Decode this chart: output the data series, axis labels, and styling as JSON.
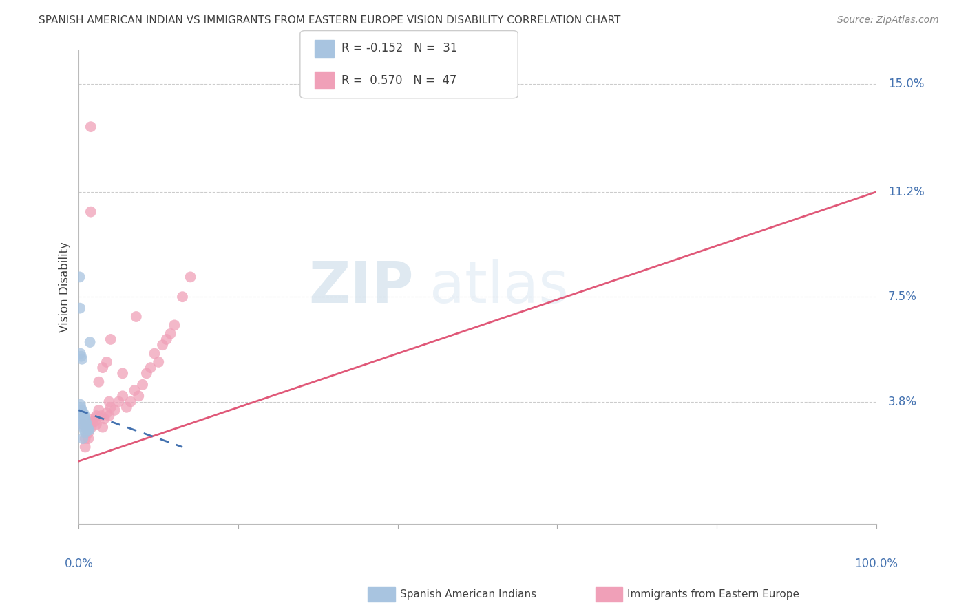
{
  "title": "SPANISH AMERICAN INDIAN VS IMMIGRANTS FROM EASTERN EUROPE VISION DISABILITY CORRELATION CHART",
  "source": "Source: ZipAtlas.com",
  "ylabel": "Vision Disability",
  "ytick_labels": [
    "15.0%",
    "11.2%",
    "7.5%",
    "3.8%"
  ],
  "ytick_values": [
    15.0,
    11.2,
    7.5,
    3.8
  ],
  "xmin": 0.0,
  "xmax": 100.0,
  "ymin": -0.5,
  "ymax": 16.2,
  "legend1_r": "-0.152",
  "legend1_n": "31",
  "legend2_r": "0.570",
  "legend2_n": "47",
  "blue_color": "#a8c4e0",
  "pink_color": "#f0a0b8",
  "blue_line_color": "#4472b0",
  "pink_line_color": "#e05878",
  "title_color": "#404040",
  "source_color": "#888888",
  "axis_label_color": "#4472b0",
  "grid_color": "#cccccc",
  "blue_scatter_x": [
    0.1,
    0.15,
    0.2,
    0.25,
    0.3,
    0.3,
    0.35,
    0.4,
    0.4,
    0.45,
    0.5,
    0.5,
    0.55,
    0.6,
    0.65,
    0.7,
    0.75,
    0.8,
    0.9,
    1.0,
    1.1,
    1.2,
    1.3,
    1.4,
    0.2,
    0.3,
    0.4,
    0.5,
    0.6,
    0.7,
    0.8
  ],
  "blue_scatter_y": [
    8.2,
    7.1,
    3.7,
    3.6,
    3.4,
    3.3,
    3.2,
    3.5,
    3.4,
    3.3,
    3.2,
    3.1,
    3.0,
    3.4,
    3.3,
    3.2,
    3.3,
    3.2,
    3.1,
    3.0,
    2.9,
    2.8,
    2.8,
    5.9,
    5.5,
    5.4,
    5.3,
    2.5,
    2.9,
    2.8,
    2.7
  ],
  "pink_scatter_x": [
    0.5,
    0.8,
    1.0,
    1.2,
    1.4,
    1.6,
    1.8,
    2.0,
    2.2,
    2.5,
    2.8,
    3.0,
    3.2,
    3.5,
    3.8,
    4.0,
    4.5,
    5.0,
    5.5,
    6.0,
    6.5,
    7.0,
    7.5,
    8.0,
    8.5,
    9.0,
    9.5,
    10.0,
    10.5,
    11.0,
    11.5,
    12.0,
    13.0,
    14.0,
    1.5,
    1.5,
    3.0,
    4.0,
    2.5,
    3.5,
    0.8,
    1.2,
    1.8,
    2.2,
    3.8,
    5.5,
    7.2
  ],
  "pink_scatter_y": [
    3.0,
    2.5,
    2.8,
    2.7,
    3.0,
    2.9,
    3.2,
    3.1,
    3.0,
    3.5,
    3.3,
    2.9,
    3.2,
    3.4,
    3.3,
    3.6,
    3.5,
    3.8,
    4.0,
    3.6,
    3.8,
    4.2,
    4.0,
    4.4,
    4.8,
    5.0,
    5.5,
    5.2,
    5.8,
    6.0,
    6.2,
    6.5,
    7.5,
    8.2,
    13.5,
    10.5,
    5.0,
    6.0,
    4.5,
    5.2,
    2.2,
    2.5,
    3.1,
    3.3,
    3.8,
    4.8,
    6.8
  ],
  "pink_line_x0": 0.0,
  "pink_line_x1": 100.0,
  "pink_line_y0": 1.7,
  "pink_line_y1": 11.2,
  "blue_line_x0": 0.0,
  "blue_line_x1": 13.0,
  "blue_line_y0": 3.5,
  "blue_line_y1": 2.2
}
